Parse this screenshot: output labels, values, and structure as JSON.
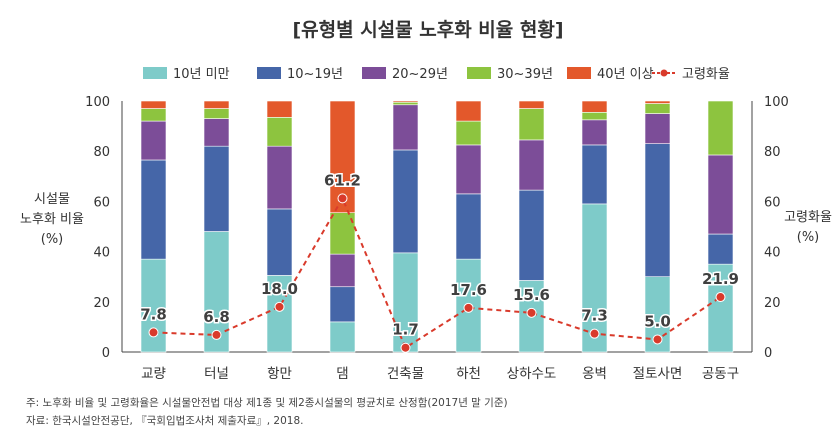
{
  "chart_data": {
    "type": "bar",
    "stacked": true,
    "title": "[유형별 시설물 노후화 비율 현황]",
    "ylabel_left": [
      "시설물",
      "노후화 비율",
      "(%)"
    ],
    "ylabel_right": [
      "고령화율",
      "(%)"
    ],
    "ylim_left": [
      0,
      100
    ],
    "ylim_right": [
      0,
      100
    ],
    "yticks": [
      0,
      20,
      40,
      60,
      80,
      100
    ],
    "grid": false,
    "legend_position": "top",
    "categories": [
      "교량",
      "터널",
      "항만",
      "댐",
      "건축물",
      "하천",
      "상하수도",
      "옹벽",
      "절토사면",
      "공동구"
    ],
    "series": [
      {
        "name": "10년 미만",
        "color": "#7ecbc9",
        "values": [
          37,
          48,
          30.5,
          12,
          39.5,
          37,
          28.5,
          59,
          30,
          35
        ]
      },
      {
        "name": "10~19년",
        "color": "#4566a8",
        "values": [
          39.5,
          34,
          26.5,
          14,
          41,
          26,
          36,
          23.5,
          53,
          12
        ]
      },
      {
        "name": "20~29년",
        "color": "#7c4d98",
        "values": [
          15.5,
          11,
          25,
          13,
          18,
          19.5,
          20,
          10,
          12,
          31.5
        ]
      },
      {
        "name": "30~39년",
        "color": "#8dc43f",
        "values": [
          5,
          4,
          11.5,
          16.5,
          1,
          9.5,
          12.5,
          3,
          4,
          21.5
        ]
      },
      {
        "name": "40년 이상",
        "color": "#e3582b",
        "values": [
          3,
          3,
          6.5,
          44.5,
          0.5,
          8,
          3,
          4.5,
          1,
          0
        ]
      }
    ],
    "line_series": {
      "name": "고령화율",
      "color": "#d93a2b",
      "values": [
        7.8,
        6.8,
        18.0,
        61.2,
        1.7,
        17.6,
        15.6,
        7.3,
        5.0,
        21.9
      ],
      "labels": [
        "7.8",
        "6.8",
        "18.0",
        "61.2",
        "1.7",
        "17.6",
        "15.6",
        "7.3",
        "5.0",
        "21.9"
      ]
    }
  },
  "notes": {
    "note": "주: 노후화 비율 및 고령화율은 시설물안전법 대상 제1종 및 제2종시설물의 평균치로 산정함(2017년 말 기준)",
    "source": "자료: 한국시설안전공단, 『국회입법조사처 제출자료』, 2018."
  }
}
